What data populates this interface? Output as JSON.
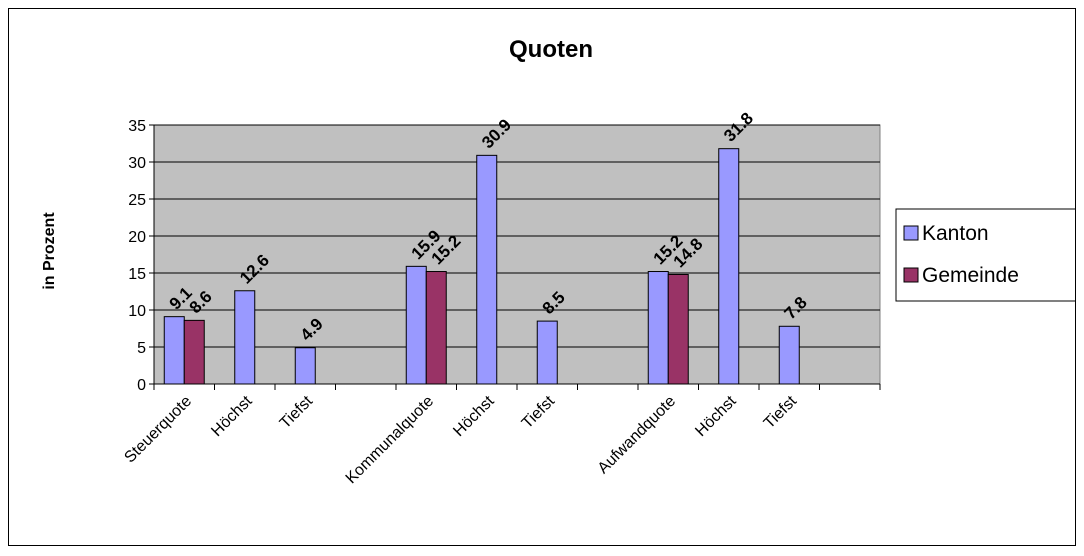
{
  "chart_data": {
    "type": "bar",
    "title": "Quoten",
    "ylabel": "in Prozent",
    "ylim": [
      0,
      35
    ],
    "yticks": [
      0,
      5,
      10,
      15,
      20,
      25,
      30,
      35
    ],
    "grid": true,
    "legend_position": "right",
    "categories": [
      "Steuerquote",
      "Höchst",
      "Tiefst",
      "",
      "Kommunalquote",
      "Höchst",
      "Tiefst",
      "",
      "Aufwandquote",
      "Höchst",
      "Tiefst",
      ""
    ],
    "series": [
      {
        "name": "Kanton",
        "color": "#9999FF",
        "values": [
          9.1,
          12.6,
          4.9,
          null,
          15.9,
          30.9,
          8.5,
          null,
          15.2,
          31.8,
          7.8,
          null
        ]
      },
      {
        "name": "Gemeinde",
        "color": "#993366",
        "values": [
          8.6,
          null,
          null,
          null,
          15.2,
          null,
          null,
          null,
          14.8,
          null,
          null,
          null
        ]
      }
    ],
    "plot_background": "#C0C0C0"
  }
}
